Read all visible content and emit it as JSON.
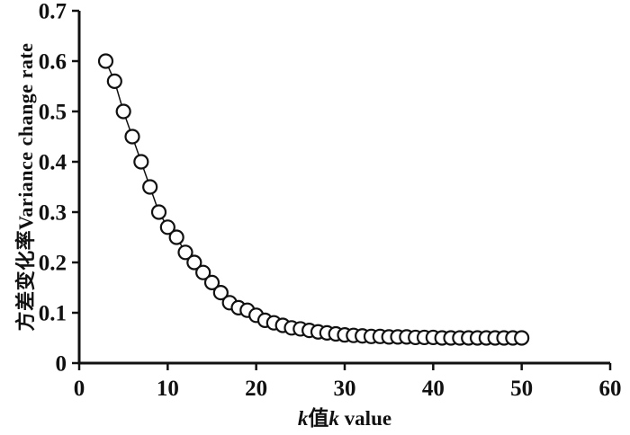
{
  "chart_data": {
    "type": "scatter",
    "title": "",
    "ylabel": "方差变化率Variance change rate",
    "xlabel_parts": [
      "k",
      "值",
      "k",
      " value"
    ],
    "xlim": [
      0,
      60
    ],
    "ylim": [
      0,
      0.7
    ],
    "xticks": [
      0,
      10,
      20,
      30,
      40,
      50,
      60
    ],
    "xtick_labels": [
      "0",
      "10",
      "20",
      "30",
      "40",
      "50",
      "60"
    ],
    "yticks": [
      0,
      0.1,
      0.2,
      0.3,
      0.4,
      0.5,
      0.6,
      0.7
    ],
    "ytick_labels": [
      "0",
      "0.1",
      "0.2",
      "0.3",
      "0.4",
      "0.5",
      "0.6",
      "0.7"
    ],
    "grid": false,
    "legend": "none",
    "marker": "open-circle",
    "colors": {
      "stroke": "#111111",
      "marker_fill": "#ffffff",
      "background": "#ffffff"
    },
    "x": [
      3,
      4,
      5,
      6,
      7,
      8,
      9,
      10,
      11,
      12,
      13,
      14,
      15,
      16,
      17,
      18,
      19,
      20,
      21,
      22,
      23,
      24,
      25,
      26,
      27,
      28,
      29,
      30,
      31,
      32,
      33,
      34,
      35,
      36,
      37,
      38,
      39,
      40,
      41,
      42,
      43,
      44,
      45,
      46,
      47,
      48,
      49,
      50
    ],
    "y": [
      0.6,
      0.56,
      0.5,
      0.45,
      0.4,
      0.35,
      0.3,
      0.27,
      0.25,
      0.22,
      0.2,
      0.18,
      0.16,
      0.14,
      0.12,
      0.11,
      0.105,
      0.095,
      0.085,
      0.08,
      0.075,
      0.07,
      0.068,
      0.065,
      0.062,
      0.06,
      0.058,
      0.056,
      0.055,
      0.054,
      0.053,
      0.053,
      0.052,
      0.052,
      0.052,
      0.051,
      0.051,
      0.051,
      0.05,
      0.05,
      0.05,
      0.05,
      0.05,
      0.05,
      0.05,
      0.05,
      0.05,
      0.05
    ]
  }
}
